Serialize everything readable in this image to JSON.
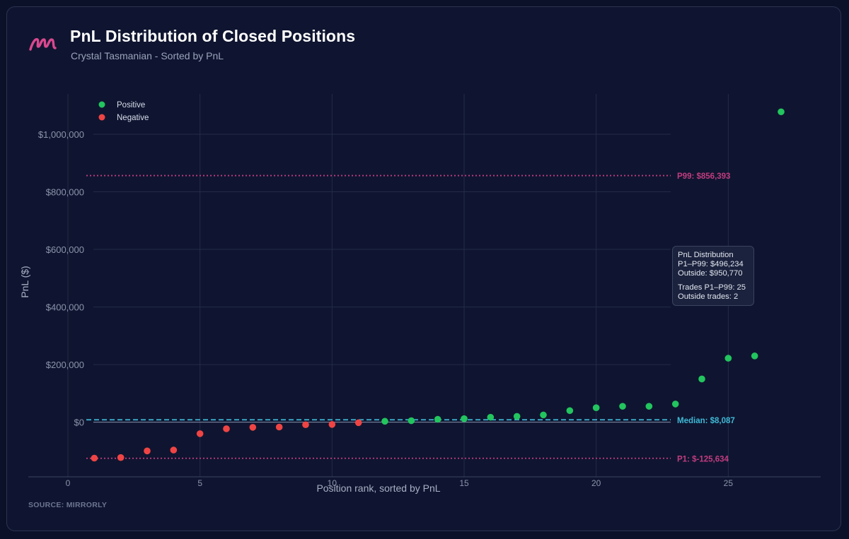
{
  "header": {
    "title": "PnL Distribution of Closed Positions",
    "subtitle": "Crystal Tasmanian - Sorted by PnL",
    "brand_color": "#d9488f"
  },
  "footer": {
    "source": "SOURCE: MIRRORLY"
  },
  "info_box": {
    "heading": "PnL Distribution",
    "range_line": "P1–P99: $496,234",
    "outside_line": "Outside: $950,770",
    "trades_line": "Trades P1–P99: 25",
    "outside_trades_line": "Outside trades: 2"
  },
  "chart_data": {
    "type": "scatter",
    "title": "PnL Distribution of Closed Positions",
    "subtitle": "Crystal Tasmanian - Sorted by PnL",
    "xlabel": "Position rank, sorted by PnL",
    "ylabel": "PnL ($)",
    "xlim": [
      -1.5,
      28.5
    ],
    "ylim": [
      -190000,
      1140000
    ],
    "x_ticks": [
      0,
      5,
      10,
      15,
      20,
      25
    ],
    "y_ticks": [
      0,
      200000,
      400000,
      600000,
      800000,
      1000000
    ],
    "y_tick_labels": [
      "$0",
      "$200,000",
      "$400,000",
      "$600,000",
      "$800,000",
      "$1,000,000"
    ],
    "grid": true,
    "legend_position": "top-left",
    "series": [
      {
        "name": "Positive",
        "color": "#22c55e",
        "points": [
          [
            12,
            3000
          ],
          [
            13,
            5000
          ],
          [
            14,
            10000
          ],
          [
            15,
            12000
          ],
          [
            16,
            17000
          ],
          [
            17,
            20000
          ],
          [
            18,
            25000
          ],
          [
            19,
            40000
          ],
          [
            20,
            50000
          ],
          [
            21,
            55000
          ],
          [
            22,
            55000
          ],
          [
            23,
            63000
          ],
          [
            24,
            150000
          ],
          [
            25,
            222000
          ],
          [
            26,
            230000
          ],
          [
            27,
            1078000
          ]
        ]
      },
      {
        "name": "Negative",
        "color": "#ef4444",
        "points": [
          [
            1,
            -125000
          ],
          [
            2,
            -123000
          ],
          [
            3,
            -100000
          ],
          [
            4,
            -97000
          ],
          [
            5,
            -40000
          ],
          [
            6,
            -23000
          ],
          [
            7,
            -18000
          ],
          [
            8,
            -17000
          ],
          [
            9,
            -9000
          ],
          [
            10,
            -8000
          ],
          [
            11,
            -2000
          ]
        ]
      }
    ],
    "reference_lines": [
      {
        "label": "P99: $856,393",
        "value": 856393,
        "style": "dotted",
        "color": "#c13c7f"
      },
      {
        "label": "Median: $8,087",
        "value": 8087,
        "style": "dashed",
        "color": "#3fb8d6"
      },
      {
        "label": "P1: $-125,634",
        "value": -125634,
        "style": "dotted",
        "color": "#c13c7f"
      }
    ]
  }
}
